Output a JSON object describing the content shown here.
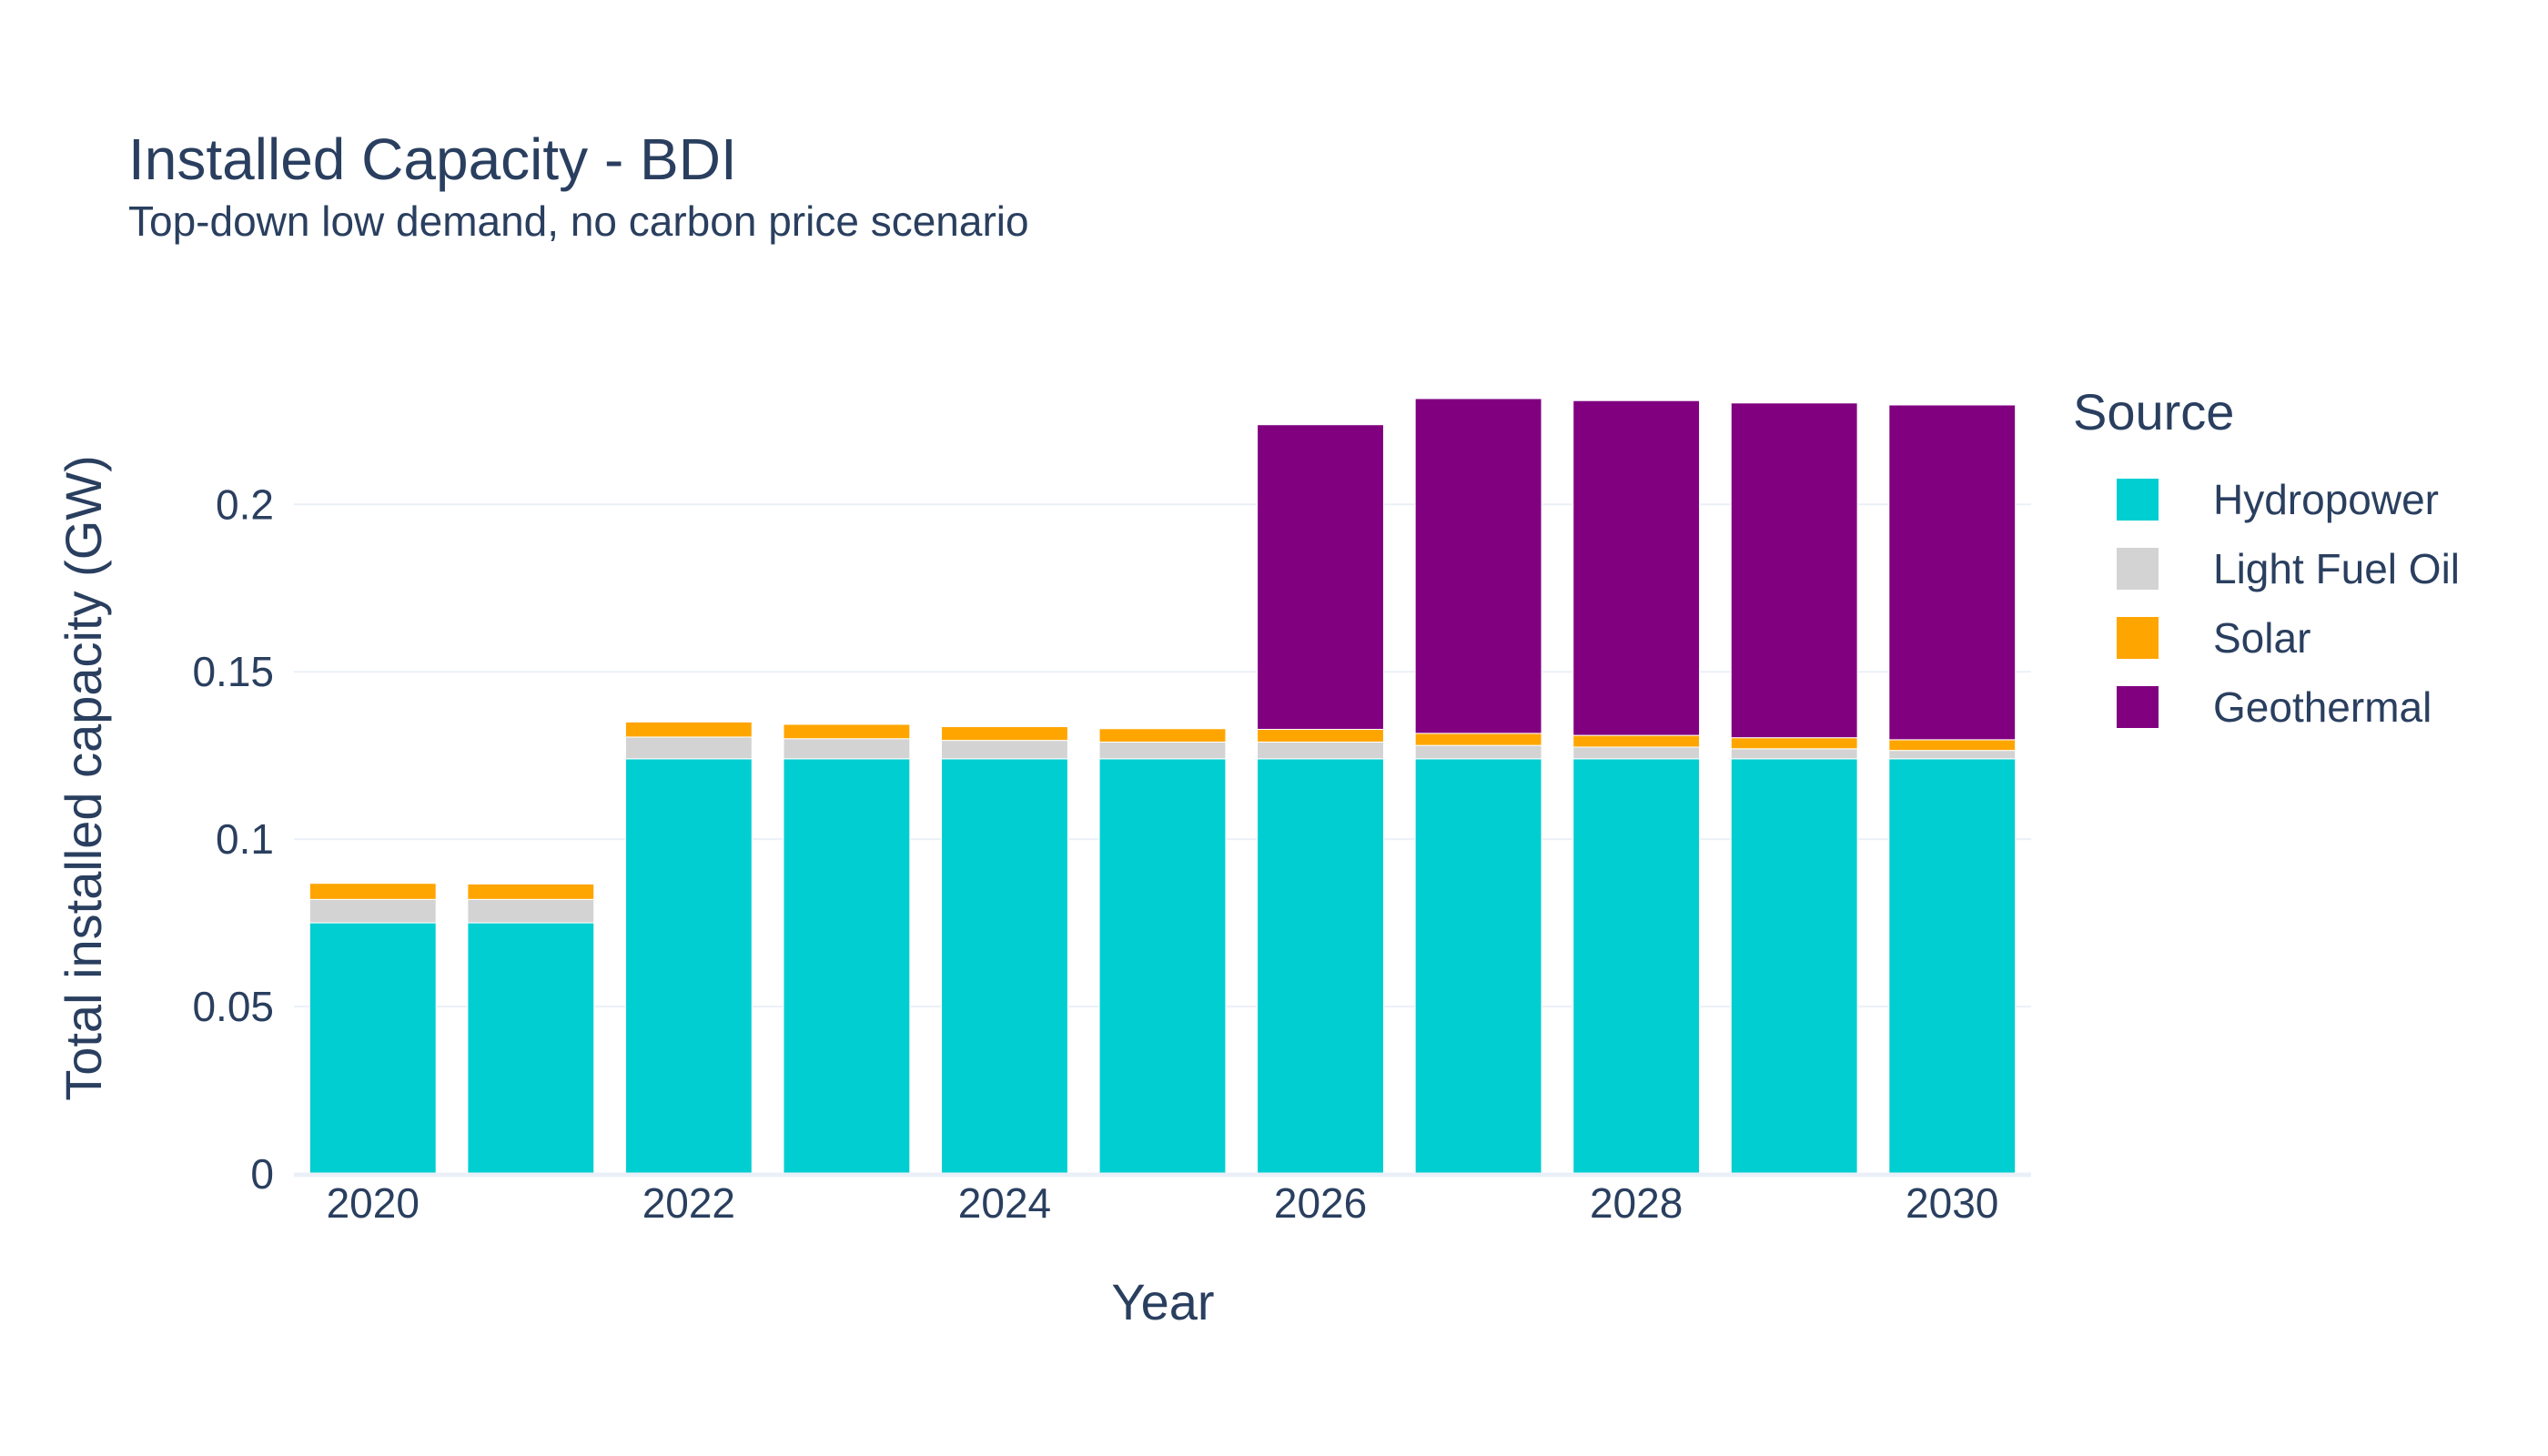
{
  "chart_data": {
    "type": "bar",
    "title": "Installed Capacity - BDI",
    "subtitle": "Top-down low demand, no carbon price scenario",
    "xlabel": "Year",
    "ylabel": "Total installed capacity (GW)",
    "stacked": true,
    "categories": [
      2020,
      2021,
      2022,
      2023,
      2024,
      2025,
      2026,
      2027,
      2028,
      2029,
      2030
    ],
    "x_tick_values": [
      2020,
      2022,
      2024,
      2026,
      2028,
      2030
    ],
    "x_tick_labels": [
      "2020",
      "2022",
      "2024",
      "2026",
      "2028",
      "2030"
    ],
    "y_tick_values": [
      0,
      0.05,
      0.1,
      0.15,
      0.2
    ],
    "y_tick_labels": [
      "0",
      "0.05",
      "0.1",
      "0.15",
      "0.2"
    ],
    "ylim": [
      0,
      0.2365
    ],
    "grid": true,
    "legend_title": "Source",
    "legend_position": "right",
    "series": [
      {
        "name": "Hydropower",
        "color": "#00ced1",
        "values": [
          0.075,
          0.075,
          0.124,
          0.124,
          0.124,
          0.124,
          0.124,
          0.124,
          0.124,
          0.124,
          0.124
        ]
      },
      {
        "name": "Light Fuel Oil",
        "color": "#d3d3d3",
        "values": [
          0.007,
          0.007,
          0.0065,
          0.006,
          0.0055,
          0.005,
          0.005,
          0.004,
          0.0035,
          0.003,
          0.0025
        ]
      },
      {
        "name": "Solar",
        "color": "#ffa500",
        "values": [
          0.0048,
          0.0046,
          0.0045,
          0.0043,
          0.0041,
          0.004,
          0.0038,
          0.0036,
          0.0035,
          0.0033,
          0.0032
        ]
      },
      {
        "name": "Geothermal",
        "color": "#800080",
        "values": [
          0,
          0,
          0,
          0,
          0,
          0,
          0.091,
          0.1,
          0.1,
          0.1,
          0.1
        ]
      }
    ]
  }
}
